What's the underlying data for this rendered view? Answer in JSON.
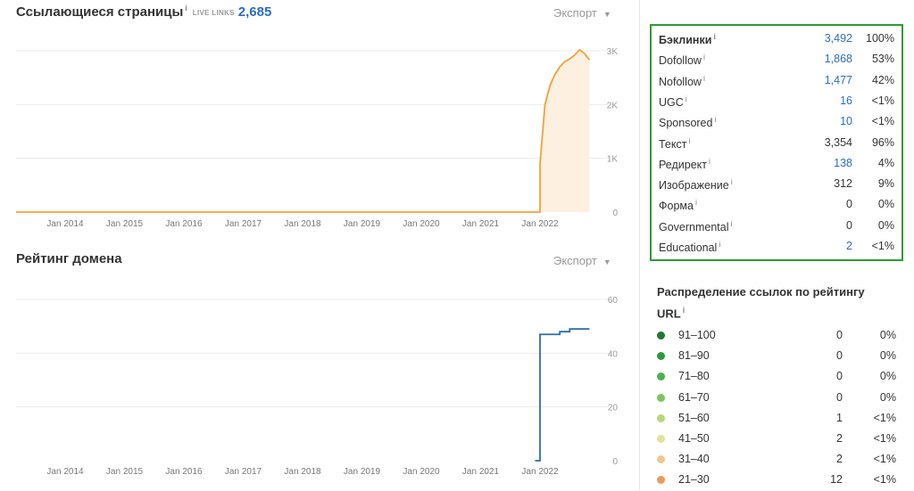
{
  "ref_pages": {
    "title": "Ссылающиеся страницы",
    "info": "i",
    "live_label": "LIVE LINKS",
    "live_count": "2,685",
    "export_label": "Экспорт",
    "caret": "▼"
  },
  "domain_rating": {
    "title": "Рейтинг домена",
    "export_label": "Экспорт",
    "caret": "▼"
  },
  "chart_data": [
    {
      "type": "area",
      "color": "#f7a035",
      "fill": "#fdf0e0",
      "x_ticks": [
        "Jan 2014",
        "Jan 2015",
        "Jan 2016",
        "Jan 2017",
        "Jan 2018",
        "Jan 2019",
        "Jan 2020",
        "Jan 2021",
        "Jan 2022"
      ],
      "y_ticks": [
        "3K",
        "2K",
        "1K",
        "0"
      ],
      "ylim": [
        0,
        3000
      ],
      "grid": true,
      "series": [
        {
          "x": [
            "2013-01",
            "2021-12",
            "2022-01",
            "2022-01",
            "2022-02",
            "2022-03",
            "2022-04",
            "2022-05",
            "2022-06",
            "2022-07",
            "2022-08",
            "2022-09",
            "2022-10",
            "2022-11"
          ],
          "values": [
            0,
            0,
            0,
            900,
            2000,
            2350,
            2560,
            2700,
            2800,
            2850,
            2920,
            3020,
            2950,
            2830
          ]
        }
      ]
    },
    {
      "type": "line",
      "color": "#2f6ea8",
      "x_ticks": [
        "Jan 2014",
        "Jan 2015",
        "Jan 2016",
        "Jan 2017",
        "Jan 2018",
        "Jan 2019",
        "Jan 2020",
        "Jan 2021",
        "Jan 2022"
      ],
      "y_ticks": [
        "60",
        "40",
        "20",
        "0"
      ],
      "ylim": [
        0,
        60
      ],
      "grid": true,
      "series": [
        {
          "x": [
            "2021-12",
            "2022-01",
            "2022-02",
            "2022-04",
            "2022-05",
            "2022-06",
            "2022-07",
            "2022-09",
            "2022-11"
          ],
          "values": [
            0,
            47,
            47,
            47,
            48,
            48,
            49,
            49,
            49
          ]
        }
      ]
    }
  ],
  "stats": {
    "rows": [
      {
        "label": "Бэклинки",
        "value": "3,492",
        "pct": "100%",
        "link": true,
        "bold": true
      },
      {
        "label": "Dofollow",
        "value": "1,868",
        "pct": "53%",
        "link": true
      },
      {
        "label": "Nofollow",
        "value": "1,477",
        "pct": "42%",
        "link": true
      },
      {
        "label": "UGC",
        "value": "16",
        "pct": "<1%",
        "link": true
      },
      {
        "label": "Sponsored",
        "value": "10",
        "pct": "<1%",
        "link": true
      },
      {
        "label": "Текст",
        "value": "3,354",
        "pct": "96%",
        "link": false
      },
      {
        "label": "Редирект",
        "value": "138",
        "pct": "4%",
        "link": true
      },
      {
        "label": "Изображение",
        "value": "312",
        "pct": "9%",
        "link": false
      },
      {
        "label": "Форма",
        "value": "0",
        "pct": "0%",
        "link": false
      },
      {
        "label": "Governmental",
        "value": "0",
        "pct": "0%",
        "link": false
      },
      {
        "label": "Educational",
        "value": "2",
        "pct": "<1%",
        "link": true
      }
    ]
  },
  "distribution": {
    "title": "Распределение ссылок по рейтингу URL",
    "rows": [
      {
        "range": "91–100",
        "count": "0",
        "pct": "0%",
        "color": "#1e7b34"
      },
      {
        "range": "81–90",
        "count": "0",
        "pct": "0%",
        "color": "#2a9a3e"
      },
      {
        "range": "71–80",
        "count": "0",
        "pct": "0%",
        "color": "#4bb04f"
      },
      {
        "range": "61–70",
        "count": "0",
        "pct": "0%",
        "color": "#7dc464"
      },
      {
        "range": "51–60",
        "count": "1",
        "pct": "<1%",
        "color": "#b8d77a"
      },
      {
        "range": "41–50",
        "count": "2",
        "pct": "<1%",
        "color": "#e0e49a"
      },
      {
        "range": "31–40",
        "count": "2",
        "pct": "<1%",
        "color": "#f4c48e"
      },
      {
        "range": "21–30",
        "count": "12",
        "pct": "<1%",
        "color": "#ef9a5a"
      }
    ]
  }
}
